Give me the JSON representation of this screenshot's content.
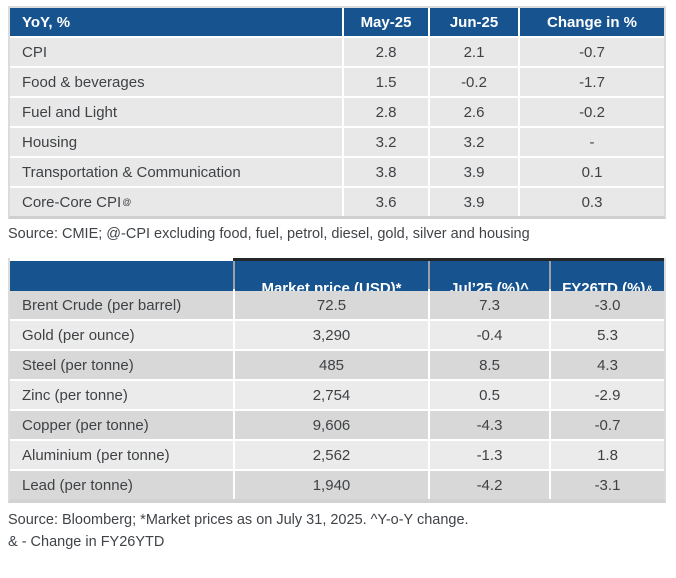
{
  "colors": {
    "header_blue": "#17548F",
    "table1_row_bg": "#e8e8e8",
    "table2_row_dark": "#d8d8d8",
    "table2_row_light": "#ebebeb",
    "text": "#3f4245"
  },
  "cpi_table": {
    "title_header": "YoY, %",
    "col_headers": [
      "May-25",
      "Jun-25",
      "Change in %"
    ],
    "rows": [
      {
        "label": "CPI",
        "may25": "2.8",
        "jun25": "2.1",
        "change": "-0.7"
      },
      {
        "label": "Food & beverages",
        "may25": "1.5",
        "jun25": "-0.2",
        "change": "-1.7"
      },
      {
        "label": "Fuel and Light",
        "may25": "2.8",
        "jun25": "2.6",
        "change": "-0.2"
      },
      {
        "label": "Housing",
        "may25": "3.2",
        "jun25": "3.2",
        "change": "-"
      },
      {
        "label": "Transportation & Communication",
        "may25": "3.8",
        "jun25": "3.9",
        "change": "0.1"
      },
      {
        "label": "Core-Core CPI",
        "label_sup": "@",
        "may25": "3.6",
        "jun25": "3.9",
        "change": "0.3"
      }
    ],
    "source": "Source: CMIE; @-CPI excluding food, fuel, petrol, diesel, gold, silver and housing"
  },
  "commodity_table": {
    "col_headers": [
      "Market price (USD)*",
      "Jul’25 (%)^",
      "FY26TD (%)"
    ],
    "fy26td_sup": "&",
    "rows": [
      {
        "label": "Brent Crude (per barrel)",
        "price": "72.5",
        "jul25": "7.3",
        "fy26td": "-3.0"
      },
      {
        "label": "Gold (per ounce)",
        "price": "3,290",
        "jul25": "-0.4",
        "fy26td": "5.3"
      },
      {
        "label": "Steel (per tonne)",
        "price": "485",
        "jul25": "8.5",
        "fy26td": "4.3"
      },
      {
        "label": "Zinc (per tonne)",
        "price": "2,754",
        "jul25": "0.5",
        "fy26td": "-2.9"
      },
      {
        "label": "Copper (per tonne)",
        "price": "9,606",
        "jul25": "-4.3",
        "fy26td": "-0.7"
      },
      {
        "label": "Aluminium (per tonne)",
        "price": "2,562",
        "jul25": "-1.3",
        "fy26td": "1.8"
      },
      {
        "label": "Lead (per tonne)",
        "price": "1,940",
        "jul25": "-4.2",
        "fy26td": "-3.1"
      }
    ],
    "source_line1": "Source: Bloomberg; *Market prices as on July 31, 2025. ^Y-o-Y change.",
    "source_line2": "& - Change in FY26YTD"
  }
}
